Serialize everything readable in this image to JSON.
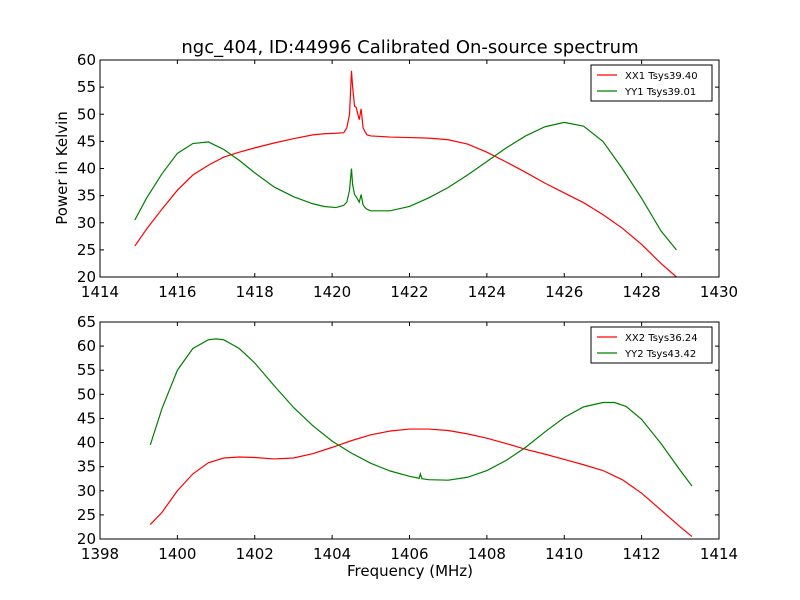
{
  "chart_data": [
    {
      "type": "line",
      "title": "ngc_404, ID:44996 Calibrated On-source spectrum",
      "xlabel": "",
      "ylabel": "Power in Kelvin",
      "xlim": [
        1414,
        1430
      ],
      "ylim": [
        20,
        60
      ],
      "x_ticks": [
        "1414",
        "1416",
        "1418",
        "1420",
        "1422",
        "1424",
        "1426",
        "1428",
        "1430"
      ],
      "y_ticks": [
        "20",
        "25",
        "30",
        "35",
        "40",
        "45",
        "50",
        "55",
        "60"
      ],
      "legend_position": "top-right",
      "grid": false,
      "series": [
        {
          "name": "XX1 Tsys39.40",
          "color": "#ff0000",
          "x": [
            1414.9,
            1415.2,
            1415.6,
            1416.0,
            1416.4,
            1416.8,
            1417.2,
            1417.6,
            1418.0,
            1418.5,
            1419.0,
            1419.5,
            1419.8,
            1420.1,
            1420.3,
            1420.38,
            1420.45,
            1420.5,
            1420.53,
            1420.58,
            1420.62,
            1420.7,
            1420.75,
            1420.8,
            1420.85,
            1420.9,
            1421.0,
            1421.5,
            1422.0,
            1422.5,
            1423.0,
            1423.5,
            1424.0,
            1424.5,
            1425.0,
            1425.5,
            1426.0,
            1426.5,
            1427.0,
            1427.5,
            1428.0,
            1428.5,
            1428.9
          ],
          "y": [
            25.7,
            28.8,
            32.5,
            36.0,
            38.8,
            40.6,
            42.1,
            43.0,
            43.8,
            44.7,
            45.5,
            46.2,
            46.4,
            46.5,
            46.6,
            47.5,
            50.0,
            58.0,
            55.0,
            51.5,
            51.3,
            49.0,
            51.0,
            47.5,
            46.8,
            46.2,
            46.0,
            45.8,
            45.7,
            45.6,
            45.3,
            44.5,
            43.0,
            41.2,
            39.3,
            37.3,
            35.5,
            33.7,
            31.5,
            29.0,
            26.0,
            22.5,
            20.0
          ]
        },
        {
          "name": "YY1 Tsys39.01",
          "color": "#008000",
          "x": [
            1414.9,
            1415.2,
            1415.6,
            1416.0,
            1416.4,
            1416.8,
            1417.2,
            1417.6,
            1418.0,
            1418.5,
            1419.0,
            1419.5,
            1419.8,
            1420.1,
            1420.3,
            1420.38,
            1420.45,
            1420.5,
            1420.53,
            1420.58,
            1420.62,
            1420.7,
            1420.75,
            1420.8,
            1420.85,
            1420.9,
            1421.0,
            1421.5,
            1422.0,
            1422.5,
            1423.0,
            1423.5,
            1424.0,
            1424.5,
            1425.0,
            1425.5,
            1426.0,
            1426.5,
            1427.0,
            1427.5,
            1428.0,
            1428.5,
            1428.9
          ],
          "y": [
            30.5,
            34.5,
            39.0,
            42.8,
            44.6,
            44.9,
            43.5,
            41.5,
            39.2,
            36.6,
            34.8,
            33.5,
            33.0,
            32.8,
            33.2,
            33.8,
            36.0,
            40.0,
            37.0,
            35.2,
            34.8,
            33.8,
            35.2,
            33.3,
            32.8,
            32.5,
            32.2,
            32.2,
            33.0,
            34.6,
            36.5,
            38.8,
            41.3,
            43.8,
            46.0,
            47.7,
            48.5,
            47.8,
            45.0,
            40.0,
            34.5,
            28.5,
            25.0
          ]
        }
      ]
    },
    {
      "type": "line",
      "title": "",
      "xlabel": "Frequency (MHz)",
      "ylabel": "",
      "xlim": [
        1398,
        1414
      ],
      "ylim": [
        20,
        65
      ],
      "x_ticks": [
        "1398",
        "1400",
        "1402",
        "1404",
        "1406",
        "1408",
        "1410",
        "1412",
        "1414"
      ],
      "y_ticks": [
        "20",
        "25",
        "30",
        "35",
        "40",
        "45",
        "50",
        "55",
        "60",
        "65"
      ],
      "legend_position": "top-right",
      "grid": false,
      "series": [
        {
          "name": "XX2 Tsys36.24",
          "color": "#ff0000",
          "x": [
            1399.3,
            1399.6,
            1400.0,
            1400.4,
            1400.8,
            1401.2,
            1401.6,
            1402.0,
            1402.5,
            1403.0,
            1403.5,
            1404.0,
            1404.5,
            1405.0,
            1405.5,
            1406.0,
            1406.5,
            1407.0,
            1407.5,
            1408.0,
            1408.5,
            1409.0,
            1409.5,
            1410.0,
            1410.5,
            1411.0,
            1411.5,
            1412.0,
            1412.5,
            1413.0,
            1413.3
          ],
          "y": [
            23.0,
            25.5,
            30.0,
            33.5,
            35.8,
            36.8,
            37.0,
            36.9,
            36.6,
            36.8,
            37.7,
            39.0,
            40.4,
            41.6,
            42.4,
            42.8,
            42.8,
            42.5,
            41.8,
            40.9,
            39.8,
            38.6,
            37.6,
            36.5,
            35.4,
            34.2,
            32.3,
            29.5,
            26.0,
            22.5,
            20.5
          ]
        },
        {
          "name": "YY2 Tsys43.42",
          "color": "#008000",
          "x": [
            1399.3,
            1399.6,
            1400.0,
            1400.4,
            1400.8,
            1401.0,
            1401.2,
            1401.6,
            1402.0,
            1402.5,
            1403.0,
            1403.5,
            1404.0,
            1404.5,
            1405.0,
            1405.5,
            1406.0,
            1406.25,
            1406.28,
            1406.32,
            1406.5,
            1407.0,
            1407.5,
            1408.0,
            1408.5,
            1409.0,
            1409.5,
            1410.0,
            1410.5,
            1411.0,
            1411.3,
            1411.6,
            1412.0,
            1412.5,
            1413.0,
            1413.3
          ],
          "y": [
            39.5,
            47.0,
            55.0,
            59.5,
            61.3,
            61.5,
            61.3,
            59.5,
            56.5,
            51.8,
            47.3,
            43.5,
            40.3,
            37.8,
            35.7,
            34.1,
            33.0,
            32.6,
            33.5,
            32.5,
            32.3,
            32.2,
            32.8,
            34.2,
            36.3,
            39.0,
            42.2,
            45.2,
            47.4,
            48.3,
            48.3,
            47.5,
            44.8,
            39.8,
            34.2,
            31.0
          ]
        }
      ]
    }
  ]
}
